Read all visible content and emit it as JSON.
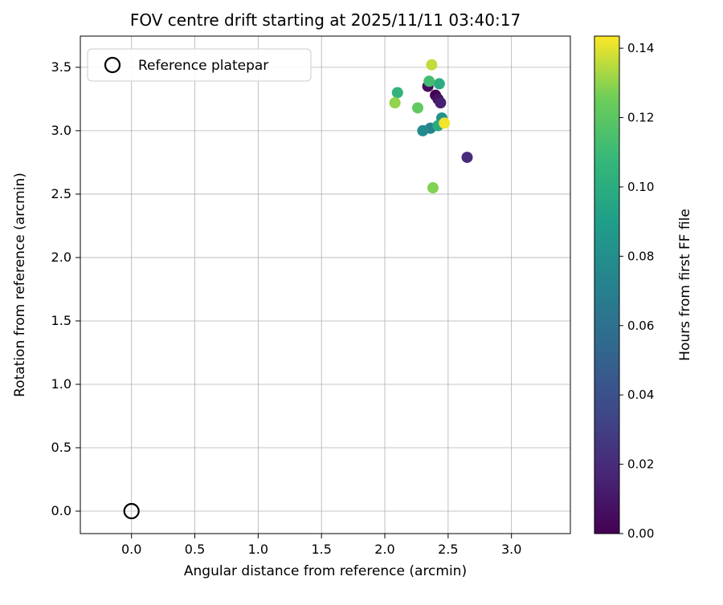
{
  "chart_data": {
    "type": "scatter",
    "title": "FOV centre drift starting at 2025/11/11 03:40:17",
    "xlabel": "Angular distance from reference (arcmin)",
    "ylabel": "Rotation from reference (arcmin)",
    "xlim": [
      -0.404,
      3.465
    ],
    "ylim": [
      -0.177,
      3.746
    ],
    "grid": true,
    "xticks": [
      {
        "v": 0.0,
        "label": "0.0"
      },
      {
        "v": 0.5,
        "label": "0.5"
      },
      {
        "v": 1.0,
        "label": "1.0"
      },
      {
        "v": 1.5,
        "label": "1.5"
      },
      {
        "v": 2.0,
        "label": "2.0"
      },
      {
        "v": 2.5,
        "label": "2.5"
      },
      {
        "v": 3.0,
        "label": "3.0"
      }
    ],
    "yticks": [
      {
        "v": 0.0,
        "label": "0.0"
      },
      {
        "v": 0.5,
        "label": "0.5"
      },
      {
        "v": 1.0,
        "label": "1.0"
      },
      {
        "v": 1.5,
        "label": "1.5"
      },
      {
        "v": 2.0,
        "label": "2.0"
      },
      {
        "v": 2.5,
        "label": "2.5"
      },
      {
        "v": 3.0,
        "label": "3.0"
      },
      {
        "v": 3.5,
        "label": "3.5"
      }
    ],
    "legend": {
      "label": "Reference platepar",
      "position": "upper left",
      "marker": "open-circle"
    },
    "reference_point": {
      "x": 0.0,
      "y": 0.0
    },
    "points": [
      {
        "x": 2.4,
        "y": 3.28,
        "hours": 0.0
      },
      {
        "x": 2.34,
        "y": 3.35,
        "hours": 0.004
      },
      {
        "x": 2.42,
        "y": 3.25,
        "hours": 0.008
      },
      {
        "x": 2.44,
        "y": 3.22,
        "hours": 0.014
      },
      {
        "x": 2.65,
        "y": 2.79,
        "hours": 0.02
      },
      {
        "x": 2.36,
        "y": 3.02,
        "hours": 0.072
      },
      {
        "x": 2.3,
        "y": 3.0,
        "hours": 0.078
      },
      {
        "x": 2.45,
        "y": 3.1,
        "hours": 0.082
      },
      {
        "x": 2.42,
        "y": 3.04,
        "hours": 0.098
      },
      {
        "x": 2.43,
        "y": 3.37,
        "hours": 0.1
      },
      {
        "x": 2.1,
        "y": 3.3,
        "hours": 0.105
      },
      {
        "x": 2.35,
        "y": 3.39,
        "hours": 0.112
      },
      {
        "x": 2.26,
        "y": 3.18,
        "hours": 0.122
      },
      {
        "x": 2.38,
        "y": 2.55,
        "hours": 0.128
      },
      {
        "x": 2.08,
        "y": 3.22,
        "hours": 0.13
      },
      {
        "x": 2.37,
        "y": 3.52,
        "hours": 0.136
      },
      {
        "x": 2.47,
        "y": 3.06,
        "hours": 0.142
      }
    ],
    "colorbar": {
      "label": "Hours from first FF file",
      "colormap": "viridis",
      "min": 0.0,
      "max": 0.1435,
      "ticks": [
        {
          "v": 0.0,
          "label": "0.00"
        },
        {
          "v": 0.02,
          "label": "0.02"
        },
        {
          "v": 0.04,
          "label": "0.04"
        },
        {
          "v": 0.06,
          "label": "0.06"
        },
        {
          "v": 0.08,
          "label": "0.08"
        },
        {
          "v": 0.1,
          "label": "0.10"
        },
        {
          "v": 0.12,
          "label": "0.12"
        },
        {
          "v": 0.14,
          "label": "0.14"
        }
      ]
    }
  }
}
